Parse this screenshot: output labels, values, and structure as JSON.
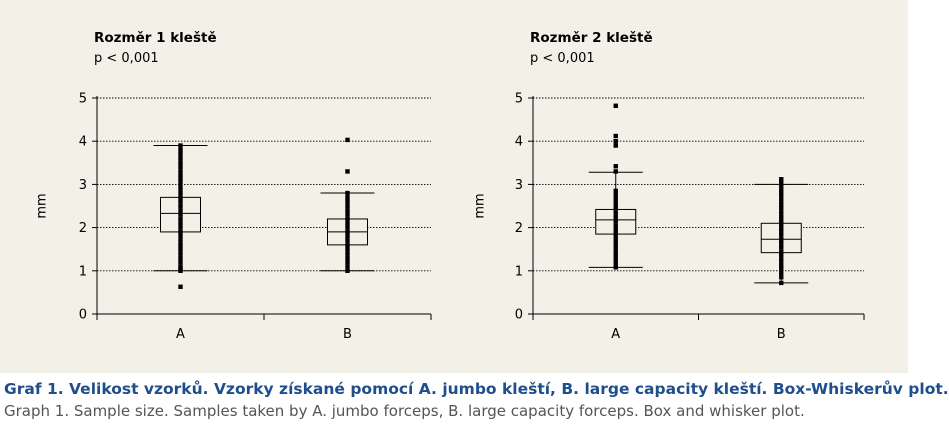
{
  "chart_data": [
    {
      "type": "box",
      "title": "Rozměr 1 kleště",
      "subtitle": "p < 0,001",
      "ylabel": "mm",
      "ylim": [
        0,
        5
      ],
      "yticks": [
        "0",
        "1",
        "2",
        "3",
        "4",
        "5"
      ],
      "grid": true,
      "categories": [
        "A",
        "B"
      ],
      "boxes": [
        {
          "category": "A",
          "whisker_low": 1.0,
          "q1": 1.9,
          "median": 2.33,
          "q3": 2.7,
          "whisker_high": 3.9,
          "points": [
            0.63,
            1.0,
            1.05,
            1.1,
            1.2,
            1.3,
            1.4,
            1.5,
            1.6,
            1.7,
            1.8,
            1.9,
            2.0,
            2.1,
            2.2,
            2.3,
            2.4,
            2.5,
            2.6,
            2.7,
            2.8,
            2.9,
            3.0,
            3.1,
            3.2,
            3.3,
            3.4,
            3.5,
            3.6,
            3.7,
            3.8,
            3.9
          ]
        },
        {
          "category": "B",
          "whisker_low": 1.0,
          "q1": 1.6,
          "median": 1.9,
          "q3": 2.2,
          "whisker_high": 2.8,
          "points": [
            1.0,
            1.1,
            1.2,
            1.3,
            1.4,
            1.5,
            1.6,
            1.7,
            1.8,
            1.9,
            2.0,
            2.1,
            2.2,
            2.3,
            2.4,
            2.5,
            2.6,
            2.7,
            2.8,
            3.3,
            4.03
          ]
        }
      ]
    },
    {
      "type": "box",
      "title": "Rozměr 2 kleště",
      "subtitle": "p < 0,001",
      "ylabel": "mm",
      "ylim": [
        0,
        5
      ],
      "yticks": [
        "0",
        "1",
        "2",
        "3",
        "4",
        "5"
      ],
      "grid": true,
      "categories": [
        "A",
        "B"
      ],
      "boxes": [
        {
          "category": "A",
          "whisker_low": 1.08,
          "q1": 1.85,
          "median": 2.18,
          "q3": 2.42,
          "whisker_high": 3.28,
          "points": [
            1.08,
            1.15,
            1.25,
            1.35,
            1.45,
            1.55,
            1.65,
            1.75,
            1.85,
            1.95,
            2.05,
            2.15,
            2.25,
            2.35,
            2.45,
            2.55,
            2.65,
            2.75,
            2.85,
            3.3,
            3.42,
            3.9,
            4.0,
            4.12,
            4.82
          ]
        },
        {
          "category": "B",
          "whisker_low": 0.72,
          "q1": 1.42,
          "median": 1.73,
          "q3": 2.1,
          "whisker_high": 3.0,
          "points": [
            0.72,
            0.85,
            0.95,
            1.05,
            1.15,
            1.25,
            1.35,
            1.45,
            1.55,
            1.65,
            1.75,
            1.85,
            1.95,
            2.05,
            2.15,
            2.25,
            2.35,
            2.45,
            2.55,
            2.65,
            2.75,
            2.85,
            2.95,
            3.05,
            3.12
          ]
        }
      ]
    }
  ],
  "caption": {
    "czech": "Graf 1. Velikost vzorků. Vzorky získané pomocí A. jumbo kleští, B. large capacity kleští. Box-Whiskerův plot.",
    "english": "Graph 1. Sample size. Samples taken by A. jumbo forceps, B. large capacity forceps. Box and whisker plot."
  },
  "colors": {
    "background": "#f3f0e8",
    "ink": "#000000",
    "caption_czech": "#1f4e8c",
    "caption_english": "#555555"
  }
}
